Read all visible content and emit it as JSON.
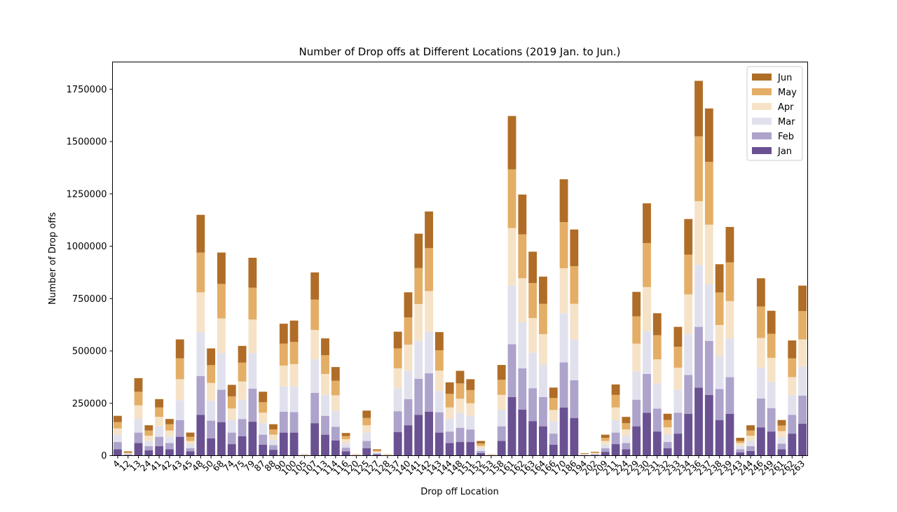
{
  "chart_data": {
    "type": "bar",
    "stacked": true,
    "title": "Number of Drop offs at Different Locations (2019 Jan. to Jun.)",
    "xlabel": "Drop off Location",
    "ylabel": "Number of Drop offs",
    "ylim": [
      0,
      1880000
    ],
    "yticks": [
      0,
      250000,
      500000,
      750000,
      1000000,
      1250000,
      1500000,
      1750000
    ],
    "yticklabels": [
      "0",
      "250000",
      "500000",
      "750000",
      "1000000",
      "1250000",
      "1500000",
      "1750000"
    ],
    "legend_position": "top-right",
    "grid": false,
    "categories": [
      "4",
      "12",
      "13",
      "24",
      "41",
      "42",
      "43",
      "45",
      "48",
      "50",
      "68",
      "74",
      "75",
      "79",
      "87",
      "88",
      "90",
      "100",
      "105",
      "107",
      "113",
      "114",
      "116",
      "120",
      "125",
      "127",
      "128",
      "137",
      "140",
      "141",
      "142",
      "143",
      "144",
      "148",
      "151",
      "152",
      "153",
      "158",
      "161",
      "162",
      "163",
      "164",
      "166",
      "170",
      "186",
      "194",
      "202",
      "209",
      "211",
      "224",
      "229",
      "230",
      "231",
      "232",
      "233",
      "234",
      "236",
      "237",
      "238",
      "239",
      "243",
      "244",
      "246",
      "249",
      "261",
      "262",
      "263"
    ],
    "series": [
      {
        "name": "Jan",
        "color": "#6a5192",
        "values": [
          30000,
          3000,
          60000,
          25000,
          45000,
          30000,
          90000,
          20000,
          195000,
          82000,
          160000,
          55000,
          92000,
          162000,
          52000,
          28000,
          110000,
          110000,
          1000,
          155000,
          100000,
          72000,
          20000,
          1000,
          35000,
          5000,
          1000,
          112000,
          145000,
          195000,
          210000,
          110000,
          60000,
          65000,
          65000,
          12000,
          1000,
          70000,
          280000,
          220000,
          165000,
          140000,
          52000,
          230000,
          180000,
          2000,
          3000,
          18000,
          55000,
          30000,
          140000,
          205000,
          115000,
          35000,
          105000,
          200000,
          325000,
          290000,
          170000,
          200000,
          15000,
          22000,
          135000,
          115000,
          30000,
          105000,
          152000
        ]
      },
      {
        "name": "Feb",
        "color": "#ada3cb",
        "values": [
          35000,
          3000,
          50000,
          20000,
          45000,
          30000,
          80000,
          15000,
          185000,
          85000,
          155000,
          55000,
          83000,
          158000,
          48000,
          22000,
          100000,
          98000,
          1000,
          145000,
          90000,
          66000,
          18000,
          1000,
          35000,
          5000,
          1000,
          100000,
          125000,
          172000,
          183000,
          97000,
          55000,
          68000,
          60000,
          10000,
          1000,
          70000,
          252000,
          197000,
          157000,
          140000,
          53000,
          215000,
          180000,
          2000,
          3000,
          17000,
          55000,
          30000,
          127000,
          185000,
          110000,
          30000,
          100000,
          185000,
          290000,
          258000,
          148000,
          175000,
          15000,
          23000,
          138000,
          112000,
          27000,
          90000,
          135000
        ]
      },
      {
        "name": "Mar",
        "color": "#e1e1ee",
        "values": [
          35000,
          3000,
          65000,
          25000,
          50000,
          30000,
          95000,
          20000,
          210000,
          95000,
          175000,
          60000,
          92000,
          170000,
          55000,
          25000,
          120000,
          122000,
          1000,
          160000,
          100000,
          75000,
          20000,
          1000,
          40000,
          5000,
          1000,
          110000,
          135000,
          182000,
          198000,
          102000,
          60000,
          72000,
          65000,
          12000,
          1000,
          78000,
          280000,
          220000,
          170000,
          155000,
          58000,
          235000,
          195000,
          2000,
          3000,
          18000,
          60000,
          35000,
          135000,
          205000,
          120000,
          35000,
          110000,
          195000,
          295000,
          270000,
          158000,
          185000,
          15000,
          25000,
          147000,
          125000,
          30000,
          95000,
          138000
        ]
      },
      {
        "name": "Apr",
        "color": "#f6e3c7",
        "values": [
          30000,
          3000,
          65000,
          25000,
          45000,
          30000,
          100000,
          15000,
          190000,
          85000,
          165000,
          55000,
          87000,
          160000,
          50000,
          25000,
          100000,
          107000,
          1000,
          140000,
          100000,
          75000,
          20000,
          1000,
          35000,
          5000,
          1000,
          95000,
          125000,
          175000,
          195000,
          97000,
          55000,
          67000,
          60000,
          12000,
          1000,
          72000,
          275000,
          210000,
          165000,
          145000,
          55000,
          215000,
          170000,
          2000,
          3000,
          17000,
          60000,
          30000,
          133000,
          210000,
          115000,
          35000,
          105000,
          190000,
          305000,
          285000,
          148000,
          178000,
          15000,
          25000,
          142000,
          115000,
          30000,
          85000,
          130000
        ]
      },
      {
        "name": "May",
        "color": "#e4ae66",
        "values": [
          30000,
          3000,
          65000,
          25000,
          45000,
          30000,
          100000,
          20000,
          190000,
          85000,
          165000,
          58000,
          90000,
          152000,
          50000,
          25000,
          105000,
          106000,
          1000,
          145000,
          90000,
          70000,
          15000,
          1000,
          35000,
          5000,
          1000,
          95000,
          130000,
          172000,
          205000,
          97000,
          65000,
          73000,
          63000,
          12000,
          1000,
          72000,
          280000,
          210000,
          167000,
          145000,
          57000,
          220000,
          180000,
          2000,
          3000,
          15000,
          60000,
          30000,
          130000,
          210000,
          115000,
          35000,
          100000,
          190000,
          310000,
          300000,
          155000,
          185000,
          10000,
          25000,
          150000,
          115000,
          27000,
          90000,
          135000
        ]
      },
      {
        "name": "Jun",
        "color": "#b06d27",
        "values": [
          30000,
          5000,
          65000,
          25000,
          40000,
          25000,
          90000,
          20000,
          180000,
          80000,
          150000,
          55000,
          80000,
          143000,
          50000,
          25000,
          95000,
          102000,
          1000,
          130000,
          80000,
          65000,
          15000,
          1000,
          35000,
          5000,
          1000,
          80000,
          120000,
          164000,
          175000,
          87000,
          55000,
          60000,
          52000,
          12000,
          1000,
          71000,
          255000,
          190000,
          150000,
          130000,
          50000,
          205000,
          175000,
          2000,
          3000,
          15000,
          50000,
          30000,
          117000,
          190000,
          105000,
          30000,
          95000,
          170000,
          265000,
          255000,
          135000,
          169000,
          15000,
          25000,
          135000,
          110000,
          26000,
          85000,
          122000
        ]
      }
    ]
  }
}
